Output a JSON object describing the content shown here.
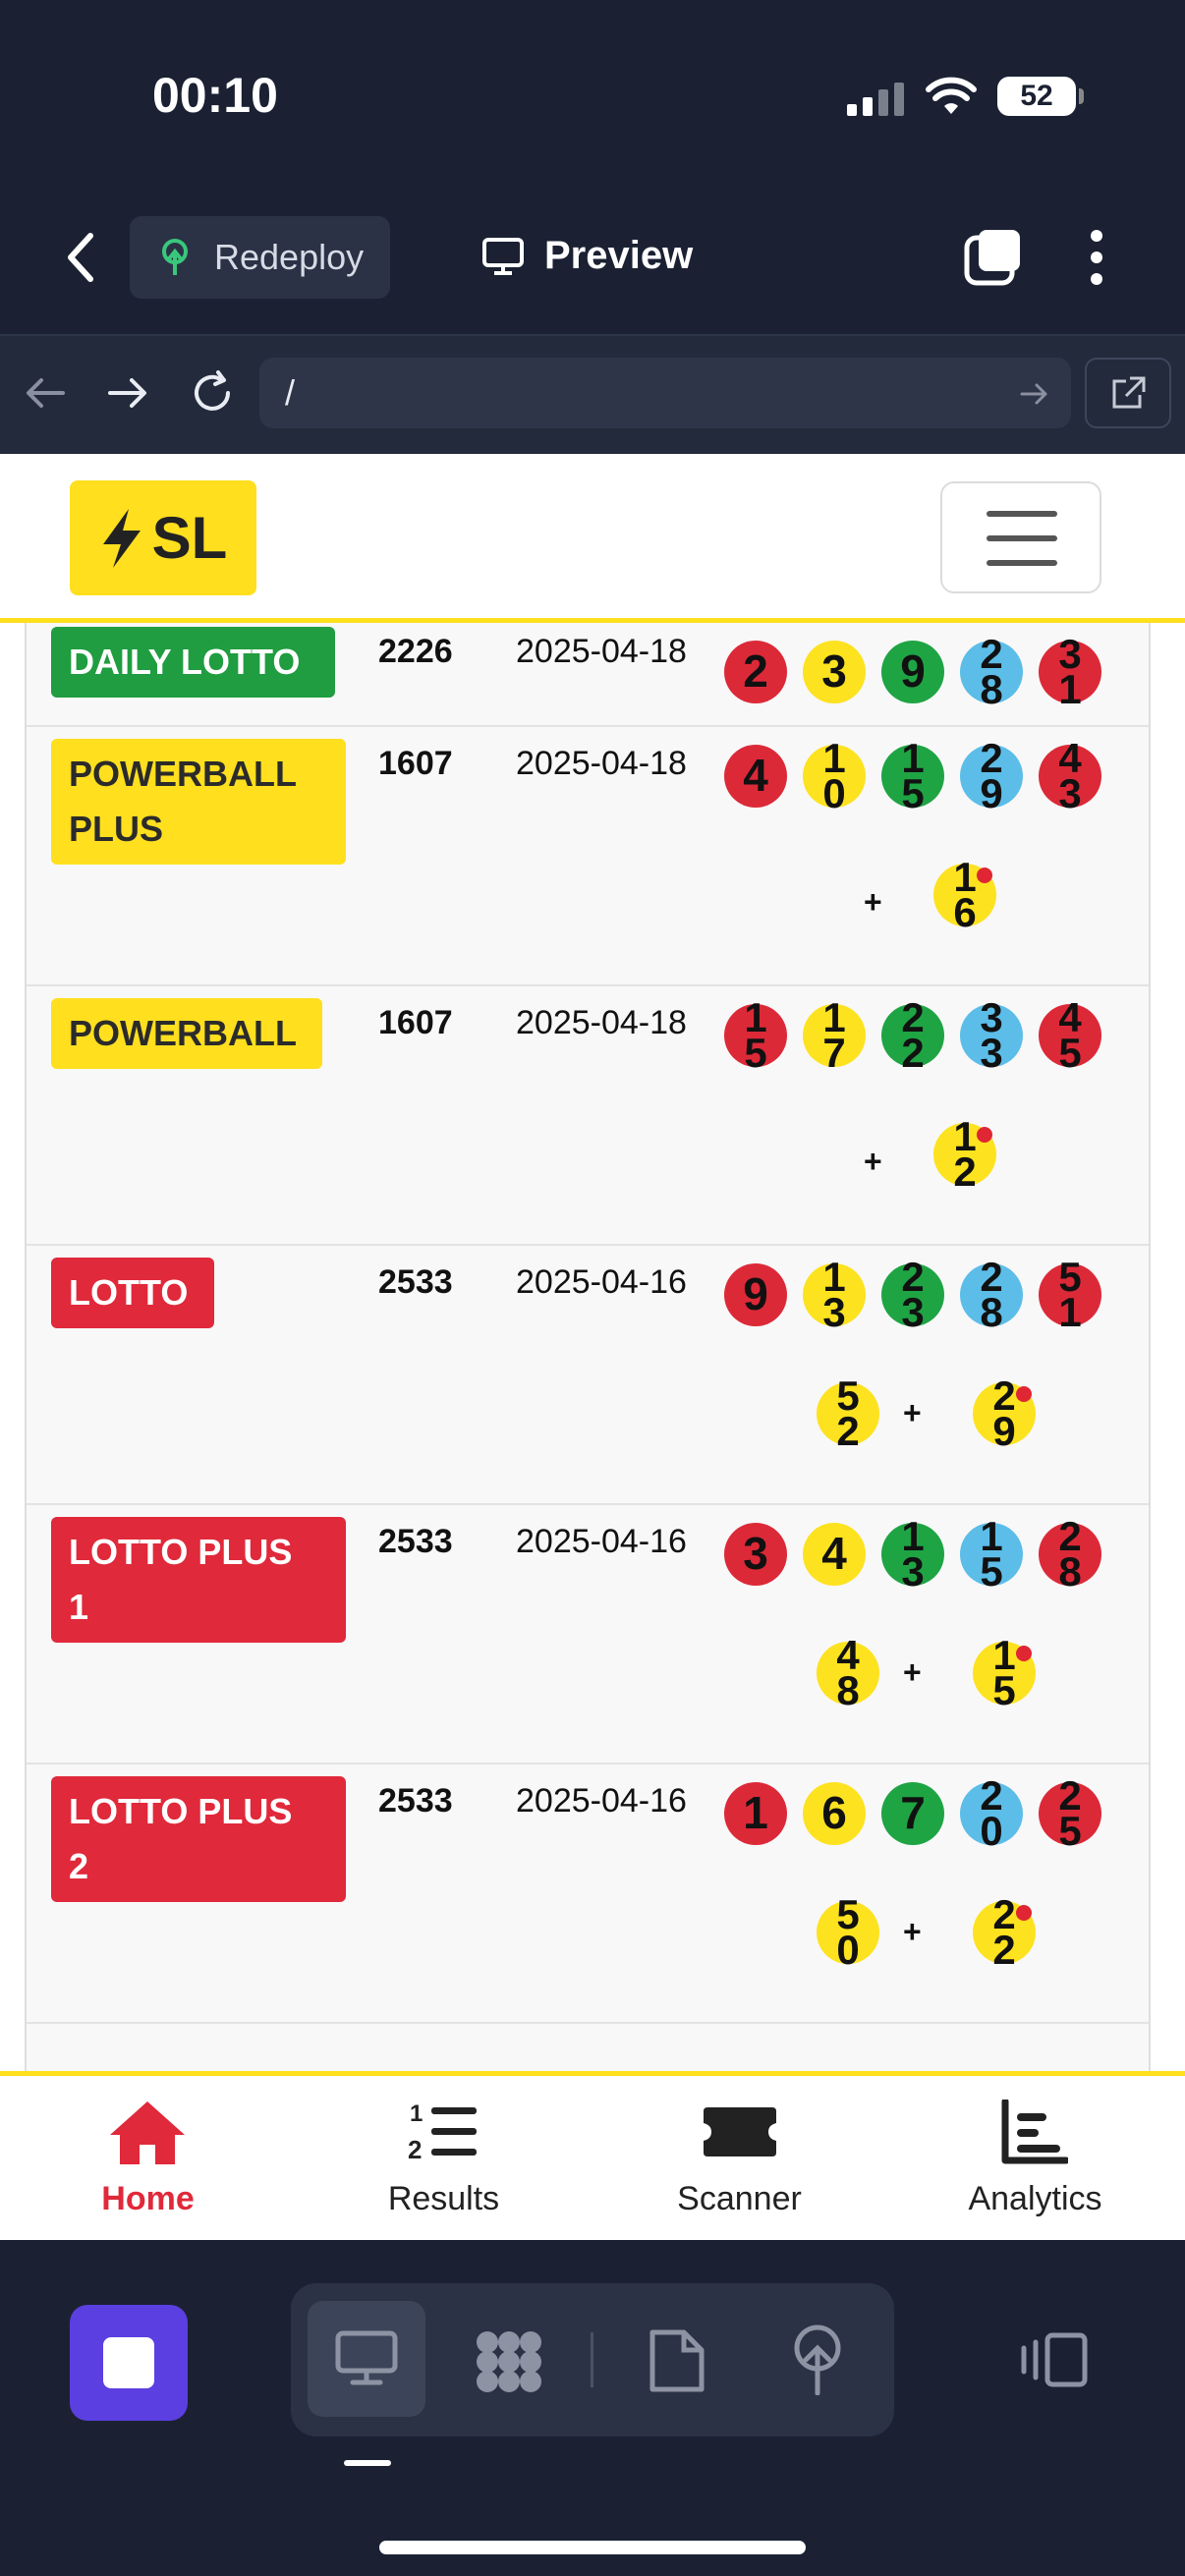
{
  "status_bar": {
    "time": "00:10",
    "battery": "52"
  },
  "app_header": {
    "redeploy_label": "Redeploy",
    "preview_label": "Preview"
  },
  "url_bar": {
    "url": "/"
  },
  "site": {
    "brand": "SL"
  },
  "results": [
    {
      "game": "DAILY LOTTO",
      "color": "green",
      "draw": "2226",
      "date": "2025-04-18",
      "main": [
        {
          "n": "2",
          "c": "red"
        },
        {
          "n": "3",
          "c": "yellow"
        },
        {
          "n": "9",
          "c": "green"
        },
        {
          "n": "28",
          "c": "blue"
        },
        {
          "n": "31",
          "c": "red"
        }
      ],
      "bonus": []
    },
    {
      "game": "POWERBALL PLUS",
      "color": "yellow",
      "draw": "1607",
      "date": "2025-04-18",
      "main": [
        {
          "n": "4",
          "c": "red"
        },
        {
          "n": "10",
          "c": "yellow"
        },
        {
          "n": "15",
          "c": "green"
        },
        {
          "n": "29",
          "c": "blue"
        },
        {
          "n": "43",
          "c": "red"
        }
      ],
      "bonus": [
        "16"
      ]
    },
    {
      "game": "POWERBALL",
      "color": "yellow",
      "draw": "1607",
      "date": "2025-04-18",
      "main": [
        {
          "n": "15",
          "c": "red"
        },
        {
          "n": "17",
          "c": "yellow"
        },
        {
          "n": "22",
          "c": "green"
        },
        {
          "n": "33",
          "c": "blue"
        },
        {
          "n": "45",
          "c": "red"
        }
      ],
      "bonus": [
        "12"
      ]
    },
    {
      "game": "LOTTO",
      "color": "red",
      "draw": "2533",
      "date": "2025-04-16",
      "main": [
        {
          "n": "9",
          "c": "red"
        },
        {
          "n": "13",
          "c": "yellow"
        },
        {
          "n": "23",
          "c": "green"
        },
        {
          "n": "28",
          "c": "blue"
        },
        {
          "n": "51",
          "c": "red"
        },
        {
          "n": "52",
          "c": "yellow"
        }
      ],
      "bonus": [
        "29"
      ]
    },
    {
      "game": "LOTTO PLUS 1",
      "color": "red",
      "draw": "2533",
      "date": "2025-04-16",
      "main": [
        {
          "n": "3",
          "c": "red"
        },
        {
          "n": "4",
          "c": "yellow"
        },
        {
          "n": "13",
          "c": "green"
        },
        {
          "n": "15",
          "c": "blue"
        },
        {
          "n": "28",
          "c": "red"
        },
        {
          "n": "48",
          "c": "yellow"
        }
      ],
      "bonus": [
        "15"
      ]
    },
    {
      "game": "LOTTO PLUS 2",
      "color": "red",
      "draw": "2533",
      "date": "2025-04-16",
      "main": [
        {
          "n": "1",
          "c": "red"
        },
        {
          "n": "6",
          "c": "yellow"
        },
        {
          "n": "7",
          "c": "green"
        },
        {
          "n": "20",
          "c": "blue"
        },
        {
          "n": "25",
          "c": "red"
        },
        {
          "n": "50",
          "c": "yellow"
        }
      ],
      "bonus": [
        "22"
      ]
    }
  ],
  "plus_sign": "+",
  "tabs": [
    {
      "label": "Home",
      "icon": "home-icon",
      "active": true
    },
    {
      "label": "Results",
      "icon": "list-ordered-icon",
      "active": false
    },
    {
      "label": "Scanner",
      "icon": "ticket-icon",
      "active": false
    },
    {
      "label": "Analytics",
      "icon": "bar-chart-icon",
      "active": false
    }
  ],
  "colors": {
    "accent_yellow": "#ffdf1e",
    "accent_red": "#e0293a",
    "dark_bg": "#1b2133"
  }
}
